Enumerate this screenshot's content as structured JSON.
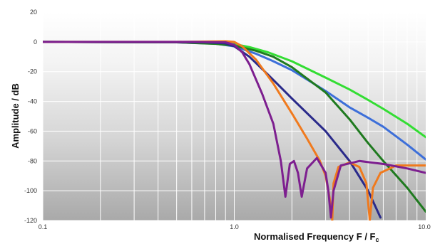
{
  "chart_data": {
    "type": "line",
    "title": "",
    "xlabel_main": "Normalised Frequency  F / F",
    "xlabel_sub": "c",
    "ylabel": "Amplitude / dB",
    "xscale": "log",
    "xlim": [
      0.1,
      10.0
    ],
    "ylim": [
      -120,
      20
    ],
    "x_ticks": [
      "0.1",
      "1.0",
      "10.0"
    ],
    "y_ticks": [
      "20",
      "0",
      "-20",
      "-40",
      "-60",
      "-80",
      "-100",
      "-120"
    ],
    "grid": true,
    "legend": "none",
    "series": [
      {
        "color": "#33dd33",
        "points": [
          [
            0.1,
            0
          ],
          [
            0.5,
            -0.2
          ],
          [
            0.8,
            -0.7
          ],
          [
            1.0,
            -1.5
          ],
          [
            1.2,
            -3.5
          ],
          [
            1.5,
            -7
          ],
          [
            2.0,
            -13
          ],
          [
            3.0,
            -24
          ],
          [
            4.0,
            -32
          ],
          [
            5.0,
            -39
          ],
          [
            6.0,
            -45
          ],
          [
            8.0,
            -55
          ],
          [
            10.0,
            -64
          ]
        ]
      },
      {
        "color": "#3d6fd9",
        "points": [
          [
            0.1,
            0
          ],
          [
            0.5,
            -0.3
          ],
          [
            0.8,
            -1.2
          ],
          [
            1.0,
            -3
          ],
          [
            1.3,
            -8
          ],
          [
            1.6,
            -13
          ],
          [
            2.0,
            -19
          ],
          [
            3.0,
            -33
          ],
          [
            4.0,
            -44
          ],
          [
            5.0,
            -51
          ],
          [
            6.0,
            -57
          ],
          [
            8.0,
            -69
          ],
          [
            10.0,
            -79
          ]
        ]
      },
      {
        "color": "#1f7a1f",
        "points": [
          [
            0.1,
            0
          ],
          [
            0.5,
            -0.3
          ],
          [
            0.8,
            -1.3
          ],
          [
            1.0,
            -2.5
          ],
          [
            1.3,
            -6
          ],
          [
            1.6,
            -10
          ],
          [
            2.0,
            -17
          ],
          [
            3.0,
            -34
          ],
          [
            4.0,
            -52
          ],
          [
            5.0,
            -68
          ],
          [
            6.0,
            -80
          ],
          [
            8.0,
            -98
          ],
          [
            10.0,
            -114
          ]
        ]
      },
      {
        "color": "#2a2a8a",
        "points": [
          [
            0.1,
            0
          ],
          [
            0.7,
            -0.3
          ],
          [
            0.9,
            -1
          ],
          [
            1.0,
            -3
          ],
          [
            1.2,
            -10
          ],
          [
            1.5,
            -22
          ],
          [
            2.0,
            -38
          ],
          [
            3.0,
            -60
          ],
          [
            4.0,
            -80
          ],
          [
            5.0,
            -100
          ],
          [
            5.8,
            -118
          ]
        ]
      },
      {
        "color": "#f07a1e",
        "points": [
          [
            0.1,
            0
          ],
          [
            0.5,
            0
          ],
          [
            0.9,
            0.4
          ],
          [
            1.0,
            0
          ],
          [
            1.1,
            -3
          ],
          [
            1.3,
            -12
          ],
          [
            1.6,
            -28
          ],
          [
            2.0,
            -48
          ],
          [
            2.4,
            -65
          ],
          [
            2.8,
            -80
          ],
          [
            3.0,
            -90
          ],
          [
            3.15,
            -105
          ],
          [
            3.25,
            -120
          ],
          [
            3.3,
            -95
          ],
          [
            3.5,
            -84
          ],
          [
            4.0,
            -81
          ],
          [
            4.5,
            -84
          ],
          [
            4.9,
            -95
          ],
          [
            5.1,
            -120
          ],
          [
            5.3,
            -98
          ],
          [
            5.8,
            -88
          ],
          [
            7.0,
            -83
          ],
          [
            10.0,
            -83
          ]
        ]
      },
      {
        "color": "#7d1f8f",
        "points": [
          [
            0.1,
            0
          ],
          [
            0.6,
            0
          ],
          [
            0.9,
            -0.3
          ],
          [
            1.0,
            -2
          ],
          [
            1.1,
            -7
          ],
          [
            1.2,
            -15
          ],
          [
            1.4,
            -35
          ],
          [
            1.6,
            -55
          ],
          [
            1.75,
            -80
          ],
          [
            1.85,
            -104
          ],
          [
            1.95,
            -82
          ],
          [
            2.05,
            -80
          ],
          [
            2.15,
            -88
          ],
          [
            2.25,
            -104
          ],
          [
            2.4,
            -85
          ],
          [
            2.7,
            -78
          ],
          [
            3.0,
            -88
          ],
          [
            3.1,
            -100
          ],
          [
            3.2,
            -118
          ],
          [
            3.3,
            -100
          ],
          [
            3.6,
            -83
          ],
          [
            4.5,
            -80
          ],
          [
            6.0,
            -82
          ],
          [
            8.0,
            -85
          ],
          [
            10.0,
            -88
          ]
        ]
      }
    ]
  }
}
